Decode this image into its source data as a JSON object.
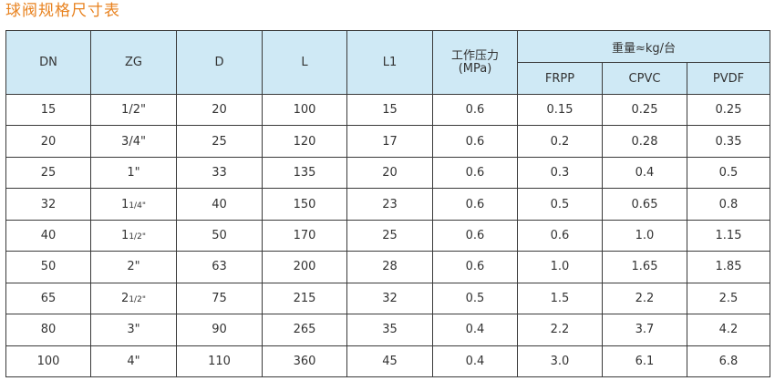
{
  "title": "球阀规格尺寸表",
  "table": {
    "headers": {
      "dn": "DN",
      "zg": "ZG",
      "d": "D",
      "l": "L",
      "l1": "L1",
      "pressure_line1": "工作压力",
      "pressure_line2": "(MPa)",
      "weight_group": "重量≈kg/台",
      "frpp": "FRPP",
      "cpvc": "CPVC",
      "pvdf": "PVDF"
    },
    "rows": [
      {
        "dn": "15",
        "zg_whole": "",
        "zg_frac": "1/2\"",
        "zg_frac_small": false,
        "d": "20",
        "l": "100",
        "l1": "15",
        "pressure": "0.6",
        "frpp": "0.15",
        "cpvc": "0.25",
        "pvdf": "0.25"
      },
      {
        "dn": "20",
        "zg_whole": "",
        "zg_frac": "3/4\"",
        "zg_frac_small": false,
        "d": "25",
        "l": "120",
        "l1": "17",
        "pressure": "0.6",
        "frpp": "0.2",
        "cpvc": "0.28",
        "pvdf": "0.35"
      },
      {
        "dn": "25",
        "zg_whole": "1\"",
        "zg_frac": "",
        "zg_frac_small": false,
        "d": "33",
        "l": "135",
        "l1": "20",
        "pressure": "0.6",
        "frpp": "0.3",
        "cpvc": "0.4",
        "pvdf": "0.5"
      },
      {
        "dn": "32",
        "zg_whole": "1",
        "zg_frac": "1/4\"",
        "zg_frac_small": true,
        "d": "40",
        "l": "150",
        "l1": "23",
        "pressure": "0.6",
        "frpp": "0.5",
        "cpvc": "0.65",
        "pvdf": "0.8"
      },
      {
        "dn": "40",
        "zg_whole": "1",
        "zg_frac": "1/2\"",
        "zg_frac_small": true,
        "d": "50",
        "l": "170",
        "l1": "25",
        "pressure": "0.6",
        "frpp": "0.6",
        "cpvc": "1.0",
        "pvdf": "1.15"
      },
      {
        "dn": "50",
        "zg_whole": "2\"",
        "zg_frac": "",
        "zg_frac_small": false,
        "d": "63",
        "l": "200",
        "l1": "28",
        "pressure": "0.6",
        "frpp": "1.0",
        "cpvc": "1.65",
        "pvdf": "1.85"
      },
      {
        "dn": "65",
        "zg_whole": "2",
        "zg_frac": "1/2\"",
        "zg_frac_small": true,
        "d": "75",
        "l": "215",
        "l1": "32",
        "pressure": "0.5",
        "frpp": "1.5",
        "cpvc": "2.2",
        "pvdf": "2.5"
      },
      {
        "dn": "80",
        "zg_whole": "3\"",
        "zg_frac": "",
        "zg_frac_small": false,
        "d": "90",
        "l": "265",
        "l1": "35",
        "pressure": "0.4",
        "frpp": "2.2",
        "cpvc": "3.7",
        "pvdf": "4.2"
      },
      {
        "dn": "100",
        "zg_whole": "4\"",
        "zg_frac": "",
        "zg_frac_small": false,
        "d": "110",
        "l": "360",
        "l1": "45",
        "pressure": "0.4",
        "frpp": "3.0",
        "cpvc": "6.1",
        "pvdf": "6.8"
      }
    ]
  },
  "colors": {
    "title": "#e8821f",
    "header_bg": "#cfe9f5",
    "border": "#3a3a3a",
    "text": "#333333"
  }
}
